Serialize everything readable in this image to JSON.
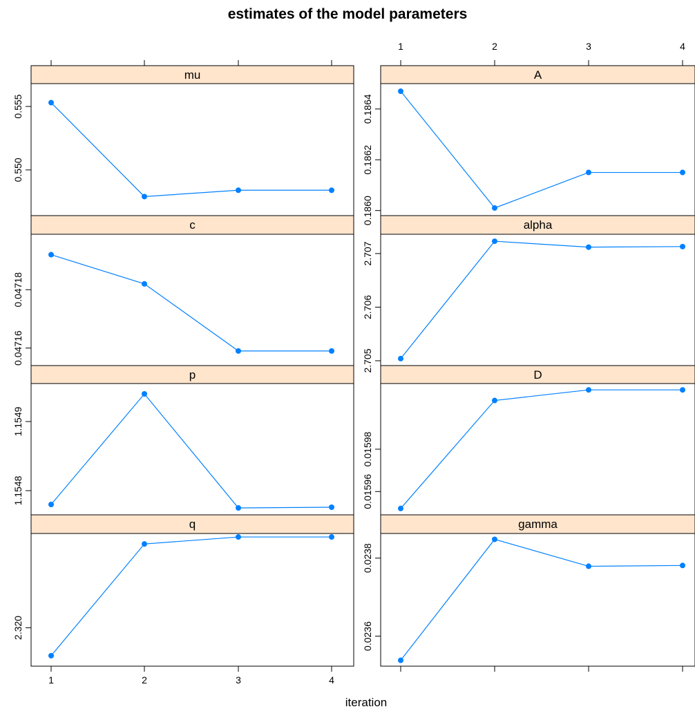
{
  "title": "estimates of the model parameters",
  "xlabel": "iteration",
  "colors": {
    "series": "#0080ff",
    "strip": "#ffe5cc",
    "frame": "#000000"
  },
  "chart_data": {
    "type": "line",
    "x": [
      1,
      2,
      3,
      4
    ],
    "xticks": [
      "1",
      "2",
      "3",
      "4"
    ],
    "panels": [
      {
        "name": "mu",
        "column": "left",
        "values": [
          0.5553,
          0.5479,
          0.5484,
          0.5484
        ],
        "ylim": [
          0.5464,
          0.5568
        ],
        "yticks": [
          0.55,
          0.555
        ],
        "ytick_labels": [
          "0.550",
          "0.555"
        ]
      },
      {
        "name": "c",
        "column": "left",
        "values": [
          0.047192,
          0.047182,
          0.047159,
          0.047159
        ],
        "ylim": [
          0.047154,
          0.047199
        ],
        "yticks": [
          0.04716,
          0.04718
        ],
        "ytick_labels": [
          "0.04716",
          "0.04718"
        ]
      },
      {
        "name": "p",
        "column": "left",
        "values": [
          1.15478,
          1.15494,
          1.154775,
          1.154776
        ],
        "ylim": [
          1.154765,
          1.154955
        ],
        "yticks": [
          1.1548,
          1.1549
        ],
        "ytick_labels": [
          "1.1548",
          "1.1549"
        ]
      },
      {
        "name": "q",
        "column": "left",
        "values": [
          2.3196,
          2.3212,
          2.3213,
          2.3213
        ],
        "ylim": [
          2.31945,
          2.32135
        ],
        "yticks": [
          2.32
        ],
        "ytick_labels": [
          "2.320"
        ]
      },
      {
        "name": "A",
        "column": "right",
        "values": [
          0.18647,
          0.18601,
          0.18615,
          0.18615
        ],
        "ylim": [
          0.18598,
          0.1865
        ],
        "yticks": [
          0.186,
          0.1862,
          0.1864
        ],
        "ytick_labels": [
          "0.1860",
          "0.1862",
          "0.1864"
        ]
      },
      {
        "name": "alpha",
        "column": "right",
        "values": [
          2.70504,
          2.70723,
          2.70712,
          2.70713
        ],
        "ylim": [
          2.70491,
          2.70736
        ],
        "yticks": [
          2.705,
          2.706,
          2.707
        ],
        "ytick_labels": [
          "2.705",
          "2.706",
          "2.707"
        ]
      },
      {
        "name": "D",
        "column": "right",
        "values": [
          0.015952,
          0.016003,
          0.016008,
          0.016008
        ],
        "ylim": [
          0.015949,
          0.016011
        ],
        "yticks": [
          0.01596,
          0.01598
        ],
        "ytick_labels": [
          "0.01596",
          "0.01598"
        ]
      },
      {
        "name": "gamma",
        "column": "right",
        "values": [
          0.023538,
          0.023848,
          0.023779,
          0.023781
        ],
        "ylim": [
          0.023523,
          0.023863
        ],
        "yticks": [
          0.0236,
          0.0238
        ],
        "ytick_labels": [
          "0.0236",
          "0.0238"
        ]
      }
    ]
  }
}
